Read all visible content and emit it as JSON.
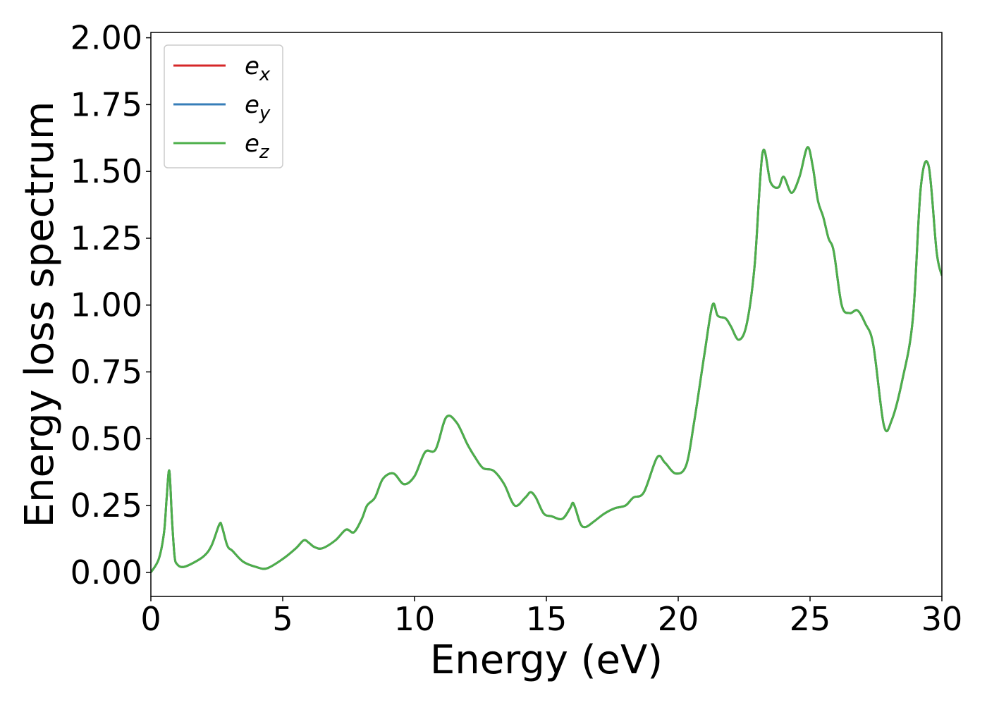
{
  "chart_data": {
    "type": "line",
    "xlabel": "Energy (eV)",
    "ylabel": "Energy loss spectrum",
    "xlim": [
      0,
      30
    ],
    "ylim": [
      -0.09,
      2.02
    ],
    "xticks": [
      0,
      5,
      10,
      15,
      20,
      25,
      30
    ],
    "xtick_labels": [
      "0",
      "5",
      "10",
      "15",
      "20",
      "25",
      "30"
    ],
    "yticks": [
      0,
      0.25,
      0.5,
      0.75,
      1.0,
      1.25,
      1.5,
      1.75,
      2.0
    ],
    "ytick_labels": [
      "0.00",
      "0.25",
      "0.50",
      "0.75",
      "1.00",
      "1.25",
      "1.50",
      "1.75",
      "2.00"
    ],
    "grid": false,
    "legend_position": "top-left",
    "x": [
      0,
      0.3,
      0.5,
      0.6,
      0.7,
      0.8,
      0.9,
      1.0,
      1.2,
      1.5,
      2.0,
      2.3,
      2.6,
      2.7,
      2.9,
      3.1,
      3.5,
      4.0,
      4.4,
      5.0,
      5.5,
      5.8,
      6.0,
      6.2,
      6.5,
      7.0,
      7.4,
      7.7,
      8.0,
      8.2,
      8.5,
      8.8,
      9.2,
      9.6,
      10.0,
      10.4,
      10.8,
      11.2,
      11.6,
      12.0,
      12.3,
      12.6,
      13.0,
      13.4,
      13.8,
      14.2,
      14.4,
      14.6,
      14.9,
      15.2,
      15.6,
      15.9,
      16.0,
      16.1,
      16.3,
      16.5,
      16.8,
      17.2,
      17.6,
      18.0,
      18.3,
      18.7,
      19.2,
      19.5,
      19.9,
      20.3,
      20.6,
      21.0,
      21.3,
      21.5,
      21.8,
      22.0,
      22.3,
      22.6,
      22.9,
      23.2,
      23.5,
      23.8,
      24.0,
      24.3,
      24.6,
      24.9,
      25.1,
      25.3,
      25.5,
      25.7,
      25.9,
      26.2,
      26.5,
      26.8,
      27.1,
      27.4,
      27.8,
      28.1,
      28.5,
      28.9,
      29.2,
      29.5,
      29.8,
      30.0
    ],
    "series": [
      {
        "name": "e_x",
        "color": "#d62728",
        "values": [
          0.0,
          0.05,
          0.15,
          0.28,
          0.38,
          0.2,
          0.06,
          0.03,
          0.02,
          0.03,
          0.06,
          0.1,
          0.18,
          0.17,
          0.1,
          0.08,
          0.04,
          0.02,
          0.015,
          0.05,
          0.09,
          0.12,
          0.11,
          0.095,
          0.09,
          0.12,
          0.16,
          0.15,
          0.2,
          0.25,
          0.28,
          0.35,
          0.37,
          0.33,
          0.36,
          0.45,
          0.46,
          0.58,
          0.56,
          0.48,
          0.43,
          0.39,
          0.38,
          0.33,
          0.25,
          0.28,
          0.3,
          0.28,
          0.22,
          0.21,
          0.2,
          0.24,
          0.26,
          0.24,
          0.18,
          0.17,
          0.19,
          0.22,
          0.24,
          0.25,
          0.28,
          0.3,
          0.43,
          0.41,
          0.37,
          0.4,
          0.56,
          0.82,
          1.0,
          0.96,
          0.95,
          0.92,
          0.87,
          0.93,
          1.15,
          1.57,
          1.46,
          1.44,
          1.48,
          1.42,
          1.48,
          1.59,
          1.52,
          1.39,
          1.33,
          1.25,
          1.2,
          1.0,
          0.97,
          0.98,
          0.93,
          0.85,
          0.55,
          0.57,
          0.72,
          0.95,
          1.44,
          1.52,
          1.2,
          1.11
        ]
      },
      {
        "name": "e_y",
        "color": "#377eb8",
        "values": [
          0.0,
          0.05,
          0.15,
          0.28,
          0.38,
          0.2,
          0.06,
          0.03,
          0.02,
          0.03,
          0.06,
          0.1,
          0.18,
          0.17,
          0.1,
          0.08,
          0.04,
          0.02,
          0.015,
          0.05,
          0.09,
          0.12,
          0.11,
          0.095,
          0.09,
          0.12,
          0.16,
          0.15,
          0.2,
          0.25,
          0.28,
          0.35,
          0.37,
          0.33,
          0.36,
          0.45,
          0.46,
          0.58,
          0.56,
          0.48,
          0.43,
          0.39,
          0.38,
          0.33,
          0.25,
          0.28,
          0.3,
          0.28,
          0.22,
          0.21,
          0.2,
          0.24,
          0.26,
          0.24,
          0.18,
          0.17,
          0.19,
          0.22,
          0.24,
          0.25,
          0.28,
          0.3,
          0.43,
          0.41,
          0.37,
          0.4,
          0.56,
          0.82,
          1.0,
          0.96,
          0.95,
          0.92,
          0.87,
          0.93,
          1.15,
          1.57,
          1.46,
          1.44,
          1.48,
          1.42,
          1.48,
          1.59,
          1.52,
          1.39,
          1.33,
          1.25,
          1.2,
          1.0,
          0.97,
          0.98,
          0.93,
          0.85,
          0.55,
          0.57,
          0.72,
          0.95,
          1.44,
          1.52,
          1.2,
          1.11
        ]
      },
      {
        "name": "e_z",
        "color": "#4daf4a",
        "values": [
          0.0,
          0.05,
          0.15,
          0.28,
          0.38,
          0.2,
          0.06,
          0.03,
          0.02,
          0.03,
          0.06,
          0.1,
          0.18,
          0.17,
          0.1,
          0.08,
          0.04,
          0.02,
          0.015,
          0.05,
          0.09,
          0.12,
          0.11,
          0.095,
          0.09,
          0.12,
          0.16,
          0.15,
          0.2,
          0.25,
          0.28,
          0.35,
          0.37,
          0.33,
          0.36,
          0.45,
          0.46,
          0.58,
          0.56,
          0.48,
          0.43,
          0.39,
          0.38,
          0.33,
          0.25,
          0.28,
          0.3,
          0.28,
          0.22,
          0.21,
          0.2,
          0.24,
          0.26,
          0.24,
          0.18,
          0.17,
          0.19,
          0.22,
          0.24,
          0.25,
          0.28,
          0.3,
          0.43,
          0.41,
          0.37,
          0.4,
          0.56,
          0.82,
          1.0,
          0.96,
          0.95,
          0.92,
          0.87,
          0.93,
          1.15,
          1.57,
          1.46,
          1.44,
          1.48,
          1.42,
          1.48,
          1.59,
          1.52,
          1.39,
          1.33,
          1.25,
          1.2,
          1.0,
          0.97,
          0.98,
          0.93,
          0.85,
          0.55,
          0.57,
          0.72,
          0.95,
          1.44,
          1.52,
          1.2,
          1.11
        ]
      }
    ],
    "legend": [
      {
        "base": "e",
        "sub": "x",
        "color": "#d62728"
      },
      {
        "base": "e",
        "sub": "y",
        "color": "#377eb8"
      },
      {
        "base": "e",
        "sub": "z",
        "color": "#4daf4a"
      }
    ]
  }
}
